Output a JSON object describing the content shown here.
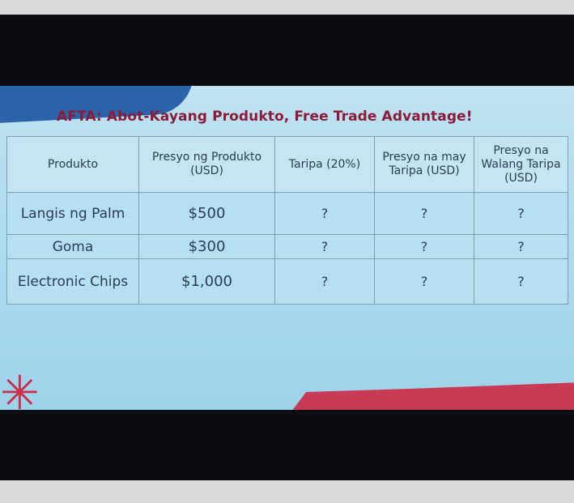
{
  "slide": {
    "title": "AFTA: Abot-Kayang Produkto, Free Trade Advantage!",
    "headers": [
      "Produkto",
      "Presyo ng Produkto (USD)",
      "Taripa (20%)",
      "Presyo na may Taripa (USD)",
      "Presyo na Walang Taripa (USD)"
    ],
    "rows": [
      {
        "produkto": "Langis ng Palm",
        "presyo": "$500",
        "taripa": "?",
        "may_taripa": "?",
        "walang_taripa": "?"
      },
      {
        "produkto": "Goma",
        "presyo": "$300",
        "taripa": "?",
        "may_taripa": "?",
        "walang_taripa": "?"
      },
      {
        "produkto": "Electronic Chips",
        "presyo": "$1,000",
        "taripa": "?",
        "may_taripa": "?",
        "walang_taripa": "?"
      }
    ]
  },
  "colors": {
    "title": "#8a1c3a",
    "accent_red": "#c83a55",
    "background": "#a9d8ee"
  }
}
